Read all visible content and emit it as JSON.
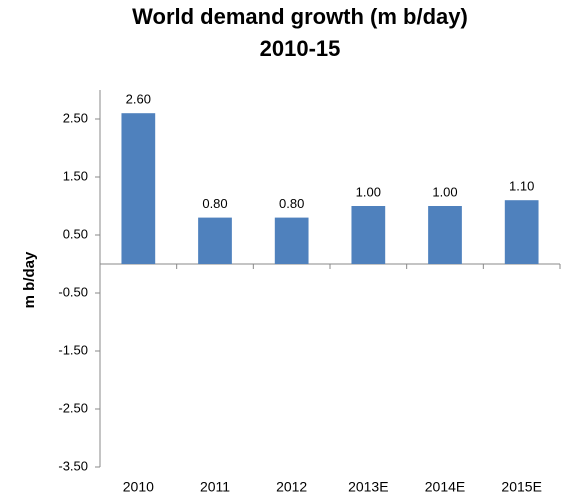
{
  "chart_data": {
    "type": "bar",
    "title": "World demand growth (m b/day)",
    "subtitle": "2010-15",
    "y_label": "m b/day",
    "categories": [
      "2010",
      "2011",
      "2012",
      "2013E",
      "2014E",
      "2015E"
    ],
    "values": [
      2.6,
      0.8,
      0.8,
      1.0,
      1.0,
      1.1
    ],
    "value_labels": [
      "2.60",
      "0.80",
      "0.80",
      "1.00",
      "1.00",
      "1.10"
    ],
    "color": "#4f81bd",
    "ylim": [
      -3.5,
      3.0
    ],
    "yticks": [
      {
        "value": 2.5,
        "label": "2.50"
      },
      {
        "value": 1.5,
        "label": "1.50"
      },
      {
        "value": 0.5,
        "label": "0.50"
      },
      {
        "value": -0.5,
        "label": "-0.50"
      },
      {
        "value": -1.5,
        "label": "-1.50"
      },
      {
        "value": -2.5,
        "label": "-2.50"
      },
      {
        "value": -3.5,
        "label": "-3.50"
      }
    ],
    "grid": false
  }
}
